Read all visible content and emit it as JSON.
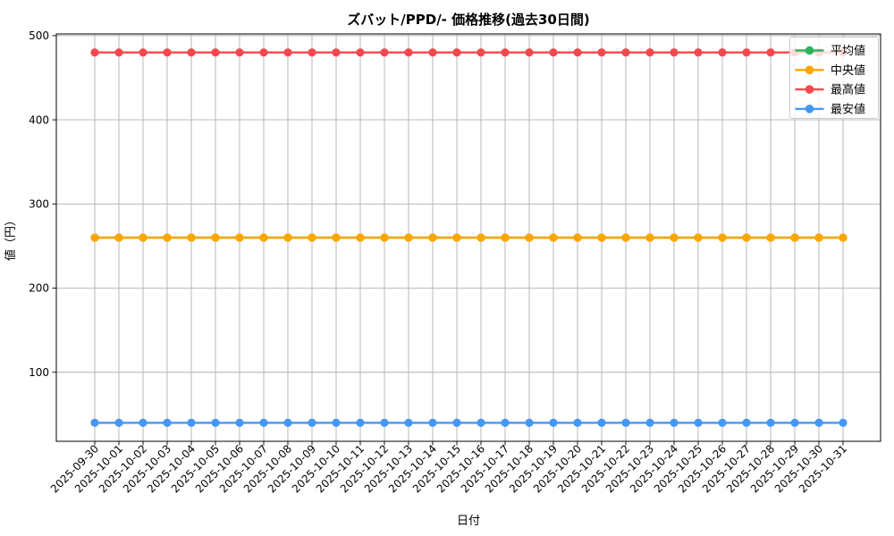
{
  "figure": {
    "background": "#ffffff"
  },
  "chart_data": {
    "type": "line",
    "title": "ズバット/PPD/- 価格推移(過去30日間)",
    "xlabel": "日付",
    "ylabel": "値（円）",
    "categories": [
      "2025-09-30",
      "2025-10-01",
      "2025-10-02",
      "2025-10-03",
      "2025-10-04",
      "2025-10-05",
      "2025-10-06",
      "2025-10-07",
      "2025-10-08",
      "2025-10-09",
      "2025-10-10",
      "2025-10-11",
      "2025-10-12",
      "2025-10-13",
      "2025-10-14",
      "2025-10-15",
      "2025-10-16",
      "2025-10-17",
      "2025-10-18",
      "2025-10-19",
      "2025-10-20",
      "2025-10-21",
      "2025-10-22",
      "2025-10-23",
      "2025-10-24",
      "2025-10-25",
      "2025-10-26",
      "2025-10-27",
      "2025-10-28",
      "2025-10-29",
      "2025-10-30",
      "2025-10-31"
    ],
    "series": [
      {
        "name": "平均値",
        "color": "#2eb55c",
        "values": [
          260,
          260,
          260,
          260,
          260,
          260,
          260,
          260,
          260,
          260,
          260,
          260,
          260,
          260,
          260,
          260,
          260,
          260,
          260,
          260,
          260,
          260,
          260,
          260,
          260,
          260,
          260,
          260,
          260,
          260,
          260,
          260
        ]
      },
      {
        "name": "中央値",
        "color": "#ffa502",
        "values": [
          260,
          260,
          260,
          260,
          260,
          260,
          260,
          260,
          260,
          260,
          260,
          260,
          260,
          260,
          260,
          260,
          260,
          260,
          260,
          260,
          260,
          260,
          260,
          260,
          260,
          260,
          260,
          260,
          260,
          260,
          260,
          260
        ]
      },
      {
        "name": "最高値",
        "color": "#f4484e",
        "values": [
          480,
          480,
          480,
          480,
          480,
          480,
          480,
          480,
          480,
          480,
          480,
          480,
          480,
          480,
          480,
          480,
          480,
          480,
          480,
          480,
          480,
          480,
          480,
          480,
          480,
          480,
          480,
          480,
          480,
          480,
          480,
          480
        ]
      },
      {
        "name": "最安値",
        "color": "#4597f5",
        "values": [
          40,
          40,
          40,
          40,
          40,
          40,
          40,
          40,
          40,
          40,
          40,
          40,
          40,
          40,
          40,
          40,
          40,
          40,
          40,
          40,
          40,
          40,
          40,
          40,
          40,
          40,
          40,
          40,
          40,
          40,
          40,
          40
        ]
      }
    ],
    "ylim": [
      18,
      502
    ],
    "yticks": [
      100,
      200,
      300,
      400,
      500
    ],
    "grid": true,
    "grid_color": "#b0b0b0",
    "x_tick_rotation": 45,
    "marker": "circle",
    "legend": {
      "position": "upper right",
      "entries": [
        "平均値",
        "中央値",
        "最高値",
        "最安値"
      ]
    }
  }
}
